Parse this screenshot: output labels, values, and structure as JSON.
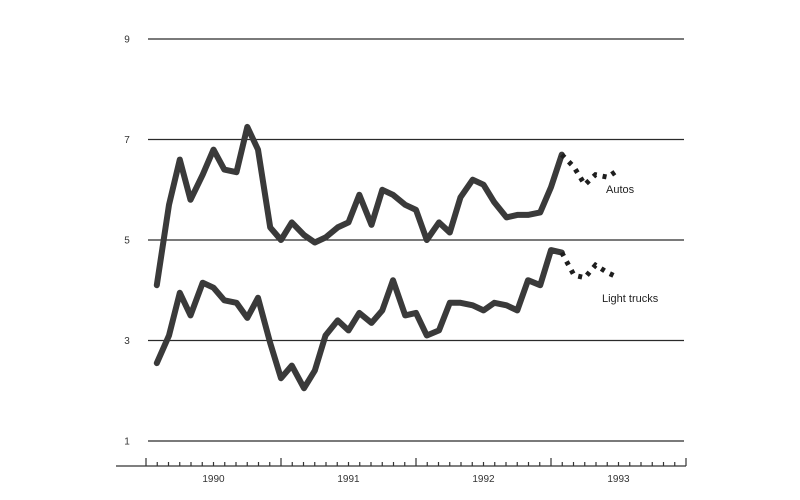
{
  "chart_data": {
    "type": "line",
    "title": "",
    "xlabel": "",
    "ylabel": "",
    "ylim": [
      1,
      9
    ],
    "y_ticks": [
      1,
      3,
      5,
      7,
      9
    ],
    "x_ticks": [
      "1990",
      "1991",
      "1992",
      "1993"
    ],
    "x_start_year": 1989.5,
    "x_end_year": 1993.5,
    "grid": "horizontal",
    "colors": {
      "line": "#3a3a3a",
      "grid": "#2a2a2a"
    },
    "series": [
      {
        "name": "Autos",
        "actual": [
          [
            1989.58,
            4.1
          ],
          [
            1989.67,
            5.7
          ],
          [
            1989.75,
            6.6
          ],
          [
            1989.83,
            5.8
          ],
          [
            1989.92,
            6.3
          ],
          [
            1990.0,
            6.8
          ],
          [
            1990.08,
            6.4
          ],
          [
            1990.17,
            6.35
          ],
          [
            1990.25,
            7.25
          ],
          [
            1990.33,
            6.8
          ],
          [
            1990.42,
            5.25
          ],
          [
            1990.5,
            5.0
          ],
          [
            1990.58,
            5.35
          ],
          [
            1990.67,
            5.1
          ],
          [
            1990.75,
            4.95
          ],
          [
            1990.83,
            5.05
          ],
          [
            1990.92,
            5.25
          ],
          [
            1991.0,
            5.35
          ],
          [
            1991.08,
            5.9
          ],
          [
            1991.17,
            5.3
          ],
          [
            1991.25,
            6.0
          ],
          [
            1991.33,
            5.9
          ],
          [
            1991.42,
            5.7
          ],
          [
            1991.5,
            5.6
          ],
          [
            1991.58,
            5.0
          ],
          [
            1991.67,
            5.35
          ],
          [
            1991.75,
            5.15
          ],
          [
            1991.83,
            5.85
          ],
          [
            1991.92,
            6.2
          ],
          [
            1992.0,
            6.1
          ],
          [
            1992.08,
            5.75
          ],
          [
            1992.17,
            5.45
          ],
          [
            1992.25,
            5.5
          ],
          [
            1992.33,
            5.5
          ],
          [
            1992.42,
            5.55
          ],
          [
            1992.5,
            6.05
          ],
          [
            1992.58,
            6.7
          ]
        ],
        "forecast": [
          [
            1992.58,
            6.7
          ],
          [
            1992.67,
            6.45
          ],
          [
            1992.75,
            6.1
          ],
          [
            1992.83,
            6.3
          ],
          [
            1992.92,
            6.25
          ],
          [
            1993.0,
            6.4
          ]
        ],
        "label": "Autos"
      },
      {
        "name": "Light trucks",
        "actual": [
          [
            1989.58,
            2.55
          ],
          [
            1989.67,
            3.1
          ],
          [
            1989.75,
            3.95
          ],
          [
            1989.83,
            3.5
          ],
          [
            1989.92,
            4.15
          ],
          [
            1990.0,
            4.05
          ],
          [
            1990.08,
            3.8
          ],
          [
            1990.17,
            3.75
          ],
          [
            1990.25,
            3.45
          ],
          [
            1990.33,
            3.85
          ],
          [
            1990.42,
            2.95
          ],
          [
            1990.5,
            2.25
          ],
          [
            1990.58,
            2.5
          ],
          [
            1990.67,
            2.05
          ],
          [
            1990.75,
            2.4
          ],
          [
            1990.83,
            3.1
          ],
          [
            1990.92,
            3.4
          ],
          [
            1991.0,
            3.2
          ],
          [
            1991.08,
            3.55
          ],
          [
            1991.17,
            3.35
          ],
          [
            1991.25,
            3.6
          ],
          [
            1991.33,
            4.2
          ],
          [
            1991.42,
            3.5
          ],
          [
            1991.5,
            3.55
          ],
          [
            1991.58,
            3.1
          ],
          [
            1991.67,
            3.2
          ],
          [
            1991.75,
            3.75
          ],
          [
            1991.83,
            3.75
          ],
          [
            1991.92,
            3.7
          ],
          [
            1992.0,
            3.6
          ],
          [
            1992.08,
            3.75
          ],
          [
            1992.17,
            3.7
          ],
          [
            1992.25,
            3.6
          ],
          [
            1992.33,
            4.2
          ],
          [
            1992.42,
            4.1
          ],
          [
            1992.5,
            4.8
          ],
          [
            1992.58,
            4.75
          ]
        ],
        "forecast": [
          [
            1992.58,
            4.75
          ],
          [
            1992.67,
            4.3
          ],
          [
            1992.75,
            4.25
          ],
          [
            1992.83,
            4.5
          ],
          [
            1992.92,
            4.35
          ],
          [
            1993.0,
            4.25
          ]
        ],
        "label": "Light trucks"
      }
    ]
  }
}
